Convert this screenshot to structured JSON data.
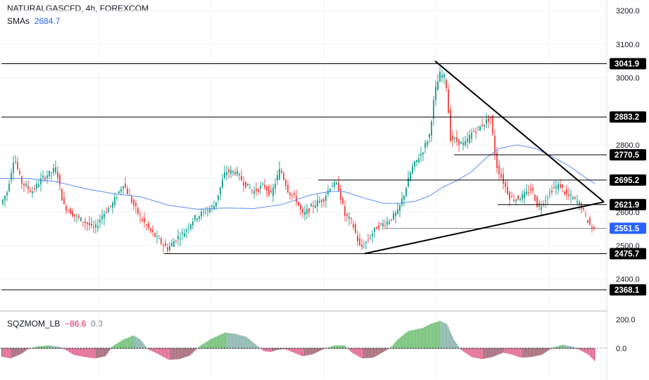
{
  "header": {
    "symbol_line": "NATURALGASCFD, 4h, FOREXCOM",
    "sma_label": "SMAs",
    "sma_value": "2684.7"
  },
  "indicator": {
    "name": "SQZMOM_LB",
    "value": "−86.6",
    "zero_value": "0.0"
  },
  "colors": {
    "candle_up": "#26a69a",
    "candle_down": "#ef5350",
    "sma": "#5b8ff9",
    "mom_up_strong": "#66bb6a",
    "mom_up_weak": "#80aea6",
    "mom_down_strong": "#e05a8a",
    "mom_down_weak": "#9c5a6a",
    "current_price": "#2962ff"
  },
  "chart_data": [
    {
      "type": "candlestick",
      "title": "NATURALGASCFD, 4h, FOREXCOM",
      "y_axis": {
        "ylim": [
          2330,
          3215
        ],
        "tick_labels": [
          "3200.0",
          "3100.0",
          "3000.0",
          "2800.0",
          "2600.0",
          "2500.0",
          "2400.0"
        ],
        "ticks": [
          3200,
          3100,
          3000,
          2800,
          2600,
          2500,
          2400
        ]
      },
      "grid": true,
      "price_path": [
        [
          0,
          2620
        ],
        [
          10,
          2660
        ],
        [
          20,
          2765
        ],
        [
          30,
          2690
        ],
        [
          45,
          2660
        ],
        [
          60,
          2700
        ],
        [
          80,
          2730
        ],
        [
          90,
          2620
        ],
        [
          105,
          2590
        ],
        [
          120,
          2570
        ],
        [
          135,
          2550
        ],
        [
          145,
          2590
        ],
        [
          160,
          2625
        ],
        [
          175,
          2685
        ],
        [
          185,
          2640
        ],
        [
          200,
          2580
        ],
        [
          215,
          2540
        ],
        [
          228,
          2510
        ],
        [
          238,
          2490
        ],
        [
          250,
          2520
        ],
        [
          262,
          2540
        ],
        [
          275,
          2580
        ],
        [
          290,
          2600
        ],
        [
          305,
          2620
        ],
        [
          320,
          2720
        ],
        [
          335,
          2720
        ],
        [
          345,
          2690
        ],
        [
          360,
          2660
        ],
        [
          375,
          2680
        ],
        [
          385,
          2650
        ],
        [
          398,
          2730
        ],
        [
          410,
          2660
        ],
        [
          420,
          2640
        ],
        [
          430,
          2590
        ],
        [
          445,
          2620
        ],
        [
          460,
          2640
        ],
        [
          470,
          2680
        ],
        [
          480,
          2680
        ],
        [
          490,
          2590
        ],
        [
          500,
          2570
        ],
        [
          512,
          2490
        ],
        [
          520,
          2510
        ],
        [
          535,
          2555
        ],
        [
          550,
          2570
        ],
        [
          565,
          2600
        ],
        [
          575,
          2660
        ],
        [
          585,
          2730
        ],
        [
          600,
          2780
        ],
        [
          610,
          2830
        ],
        [
          618,
          2960
        ],
        [
          625,
          3010
        ],
        [
          633,
          3000
        ],
        [
          640,
          2820
        ],
        [
          650,
          2810
        ],
        [
          660,
          2800
        ],
        [
          670,
          2835
        ],
        [
          680,
          2850
        ],
        [
          690,
          2870
        ],
        [
          697,
          2880
        ],
        [
          705,
          2740
        ],
        [
          715,
          2690
        ],
        [
          725,
          2640
        ],
        [
          735,
          2640
        ],
        [
          745,
          2650
        ],
        [
          755,
          2670
        ],
        [
          765,
          2610
        ],
        [
          775,
          2640
        ],
        [
          785,
          2670
        ],
        [
          795,
          2680
        ],
        [
          805,
          2650
        ],
        [
          815,
          2640
        ],
        [
          825,
          2620
        ],
        [
          833,
          2580
        ],
        [
          840,
          2555
        ],
        [
          845,
          2551.5
        ]
      ],
      "series": [
        {
          "name": "SMAs",
          "path": [
            [
              0,
              2700
            ],
            [
              40,
              2700
            ],
            [
              80,
              2690
            ],
            [
              120,
              2670
            ],
            [
              160,
              2655
            ],
            [
              200,
              2645
            ],
            [
              240,
              2620
            ],
            [
              280,
              2608
            ],
            [
              320,
              2612
            ],
            [
              360,
              2610
            ],
            [
              400,
              2622
            ],
            [
              440,
              2650
            ],
            [
              470,
              2662
            ],
            [
              490,
              2660
            ],
            [
              520,
              2640
            ],
            [
              545,
              2626
            ],
            [
              565,
              2625
            ],
            [
              590,
              2632
            ],
            [
              610,
              2648
            ],
            [
              630,
              2675
            ],
            [
              650,
              2695
            ],
            [
              670,
              2720
            ],
            [
              690,
              2760
            ],
            [
              710,
              2790
            ],
            [
              735,
              2800
            ],
            [
              760,
              2790
            ],
            [
              785,
              2765
            ],
            [
              810,
              2735
            ],
            [
              830,
              2705
            ],
            [
              845,
              2684.7
            ]
          ]
        }
      ],
      "horizontal_levels": [
        {
          "label": "3041.9",
          "value": 3041.9
        },
        {
          "label": "2883.2",
          "value": 2883.2
        },
        {
          "label": "2770.5",
          "value": 2770.5
        },
        {
          "label": "2695.2",
          "value": 2695.2
        },
        {
          "label": "2621.9",
          "value": 2621.9
        },
        {
          "label": "2551.5",
          "value": 2551.5,
          "current_price": true
        },
        {
          "label": "2475.7",
          "value": 2475.7
        },
        {
          "label": "2368.1",
          "value": 2368.1
        }
      ],
      "trendlines": [
        {
          "from": [
            618,
            3050
          ],
          "to": [
            858,
            2630
          ]
        },
        {
          "from": [
            518,
            2476
          ],
          "to": [
            858,
            2630
          ]
        }
      ]
    },
    {
      "type": "bar",
      "title": "SQZMOM_LB",
      "y_axis": {
        "tick_labels": [
          "200.0",
          "0.0"
        ],
        "ticks": [
          200,
          0
        ]
      },
      "momentum": [
        [
          0,
          -55
        ],
        [
          15,
          -70
        ],
        [
          30,
          -40
        ],
        [
          40,
          -5
        ],
        [
          55,
          15
        ],
        [
          70,
          20
        ],
        [
          85,
          10
        ],
        [
          95,
          -15
        ],
        [
          105,
          -45
        ],
        [
          120,
          -60
        ],
        [
          135,
          -70
        ],
        [
          150,
          -55
        ],
        [
          160,
          15
        ],
        [
          175,
          60
        ],
        [
          190,
          90
        ],
        [
          200,
          60
        ],
        [
          210,
          -5
        ],
        [
          225,
          -40
        ],
        [
          240,
          -80
        ],
        [
          255,
          -75
        ],
        [
          270,
          -50
        ],
        [
          285,
          20
        ],
        [
          300,
          65
        ],
        [
          320,
          110
        ],
        [
          335,
          100
        ],
        [
          350,
          80
        ],
        [
          365,
          20
        ],
        [
          375,
          -20
        ],
        [
          385,
          -25
        ],
        [
          395,
          -10
        ],
        [
          405,
          -5
        ],
        [
          415,
          -25
        ],
        [
          430,
          -55
        ],
        [
          445,
          -40
        ],
        [
          460,
          -5
        ],
        [
          475,
          20
        ],
        [
          490,
          20
        ],
        [
          500,
          -30
        ],
        [
          515,
          -70
        ],
        [
          530,
          -65
        ],
        [
          545,
          -25
        ],
        [
          555,
          5
        ],
        [
          565,
          60
        ],
        [
          580,
          120
        ],
        [
          600,
          140
        ],
        [
          612,
          170
        ],
        [
          625,
          190
        ],
        [
          635,
          170
        ],
        [
          645,
          60
        ],
        [
          655,
          -10
        ],
        [
          670,
          -60
        ],
        [
          685,
          -75
        ],
        [
          700,
          -60
        ],
        [
          715,
          -30
        ],
        [
          725,
          -40
        ],
        [
          740,
          -65
        ],
        [
          755,
          -60
        ],
        [
          770,
          -45
        ],
        [
          785,
          5
        ],
        [
          800,
          25
        ],
        [
          815,
          10
        ],
        [
          825,
          -15
        ],
        [
          835,
          -40
        ],
        [
          845,
          -86.6
        ]
      ]
    }
  ]
}
